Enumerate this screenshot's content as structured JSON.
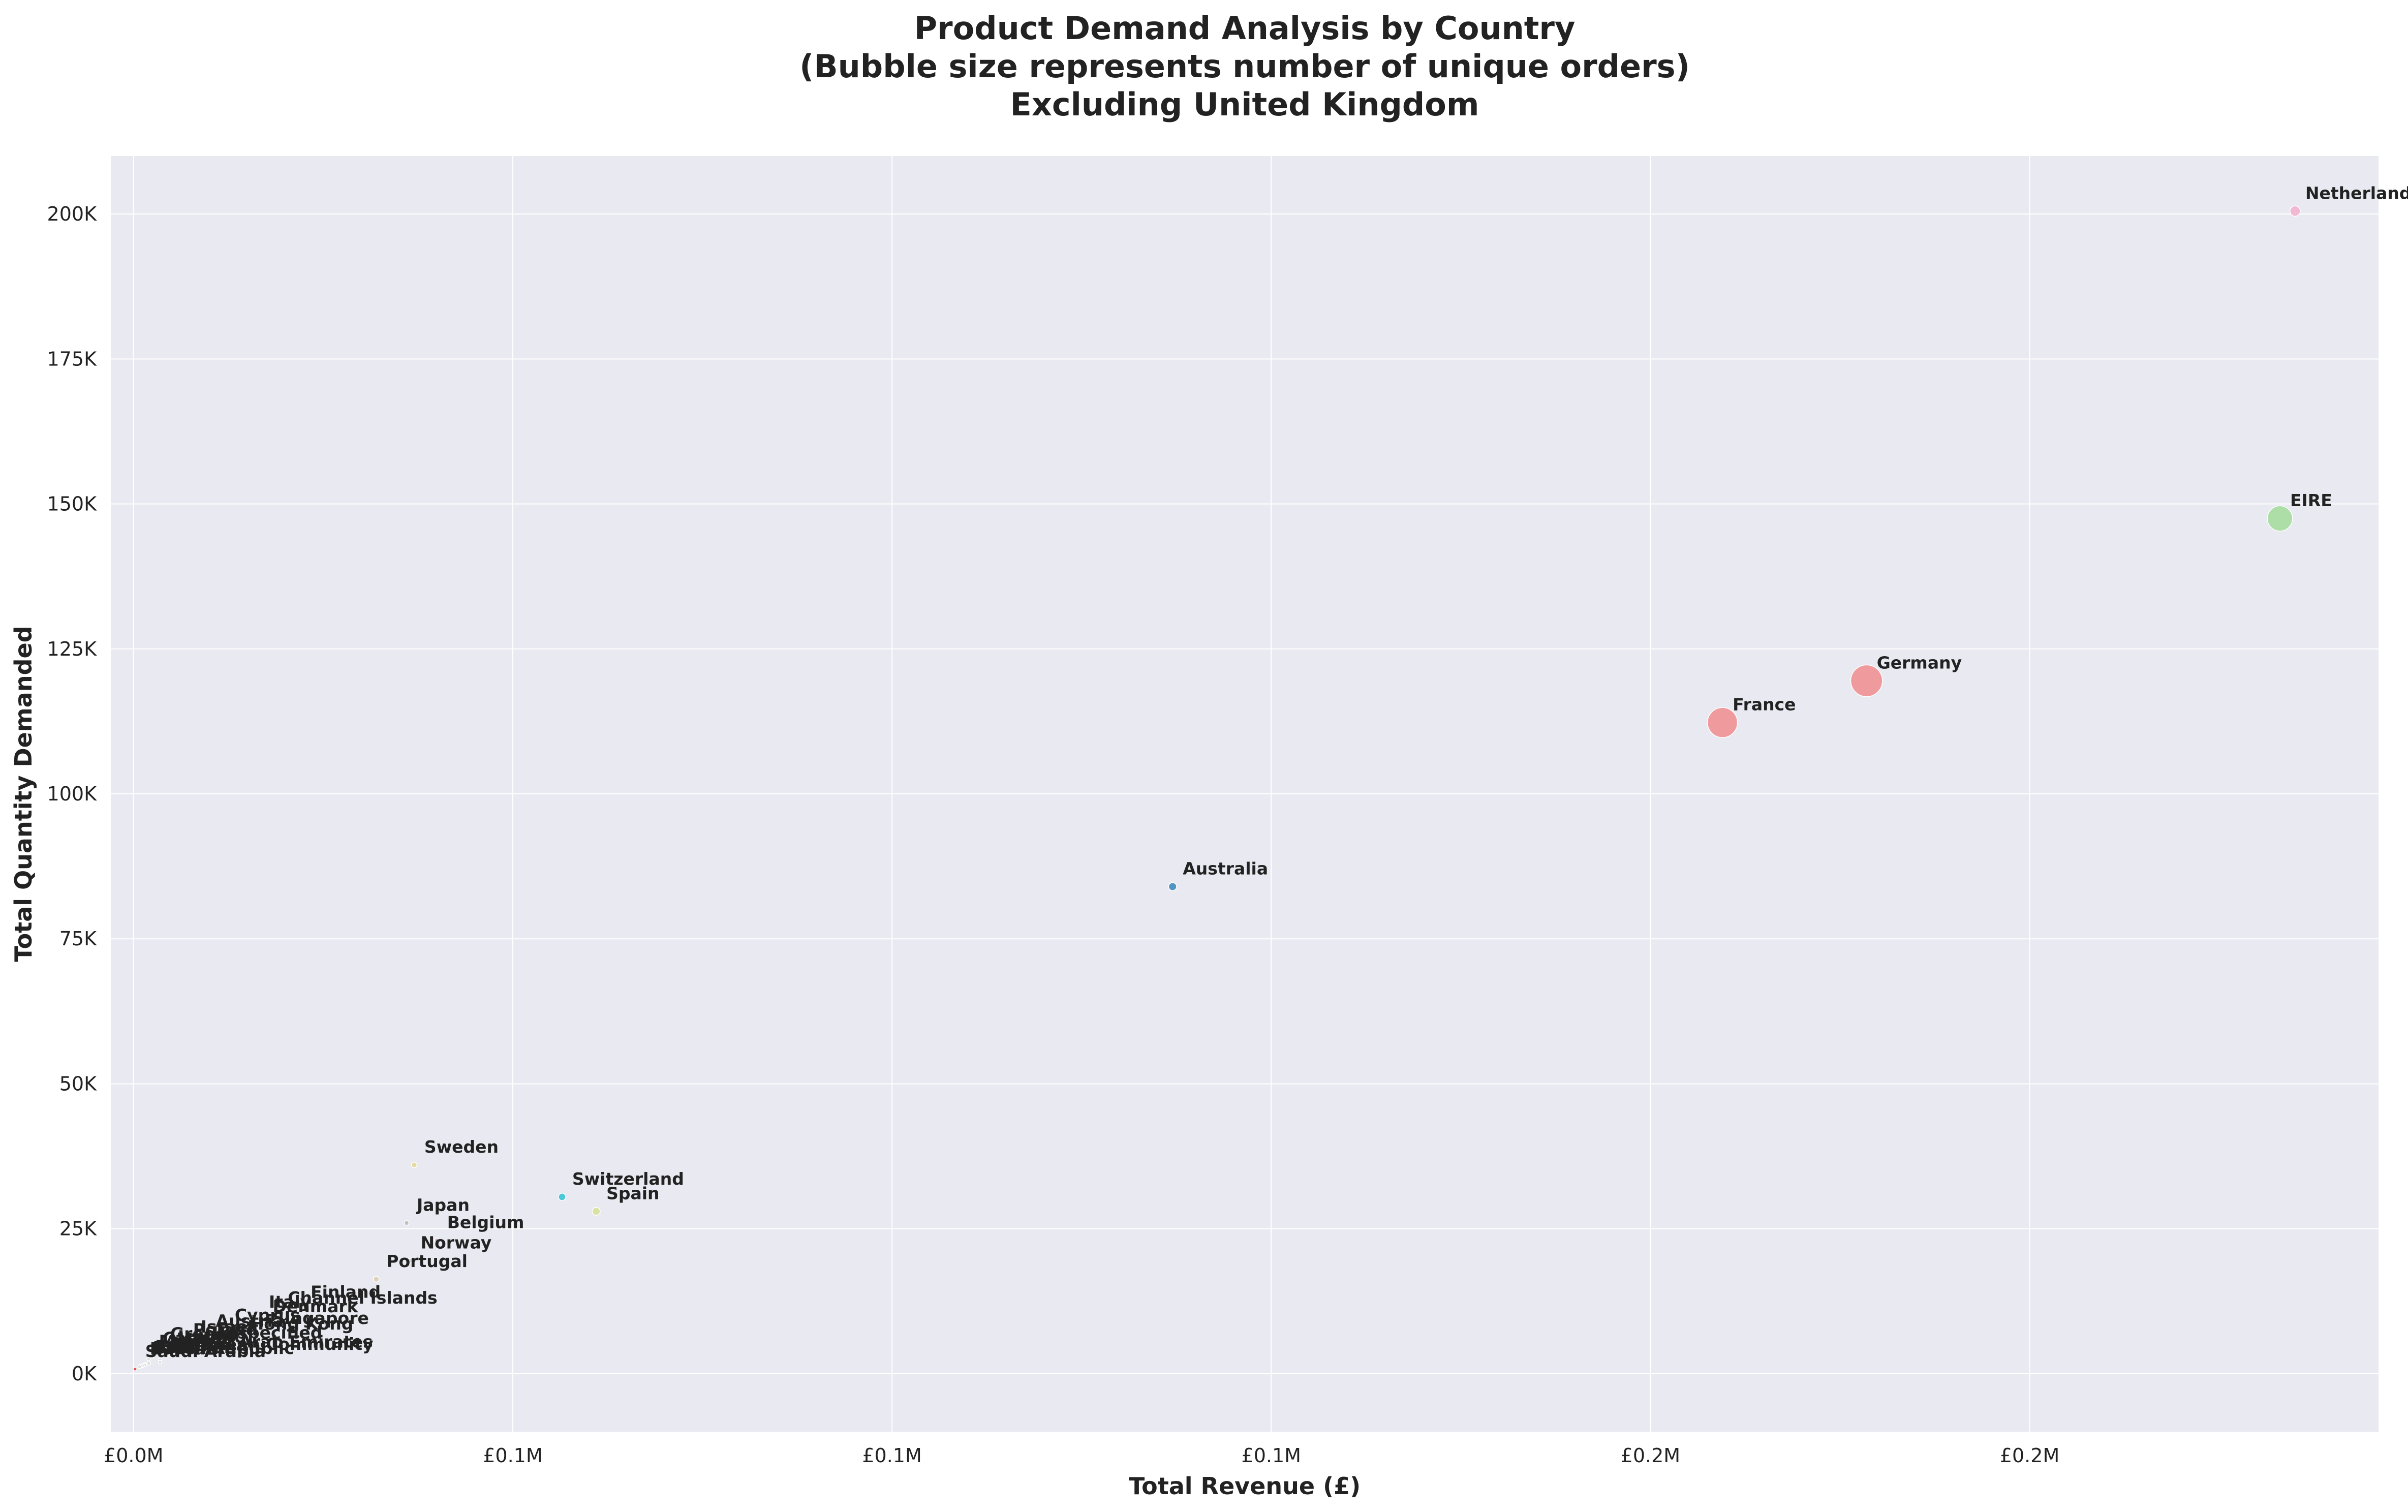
{
  "chart_data": {
    "type": "scatter",
    "title_lines": [
      "Product Demand Analysis by Country",
      "(Bubble size represents number of unique orders)",
      "Excluding United Kingdom"
    ],
    "xlabel": "Total Revenue (£)",
    "ylabel": "Total Quantity Demanded",
    "xlim": [
      -3000,
      296000
    ],
    "ylim": [
      -10000,
      210000
    ],
    "grid": true,
    "legend": "none",
    "x_ticks": [
      {
        "value": 0,
        "label": "£0.0M"
      },
      {
        "value": 50000,
        "label": "£0.1M"
      },
      {
        "value": 100000,
        "label": "£0.1M"
      },
      {
        "value": 150000,
        "label": "£0.1M"
      },
      {
        "value": 200000,
        "label": "£0.2M"
      },
      {
        "value": 250000,
        "label": "£0.2M"
      }
    ],
    "y_ticks": [
      {
        "value": 0,
        "label": "0K"
      },
      {
        "value": 25000,
        "label": "25K"
      },
      {
        "value": 50000,
        "label": "50K"
      },
      {
        "value": 75000,
        "label": "75K"
      },
      {
        "value": 100000,
        "label": "100K"
      },
      {
        "value": 125000,
        "label": "125K"
      },
      {
        "value": 150000,
        "label": "150K"
      },
      {
        "value": 175000,
        "label": "175K"
      },
      {
        "value": 200000,
        "label": "200K"
      }
    ],
    "points": [
      {
        "country": "Netherlands",
        "x": 285000,
        "y": 200500,
        "orders": 10,
        "color": "#f4a6c8"
      },
      {
        "country": "EIRE",
        "x": 283000,
        "y": 147500,
        "orders": 60,
        "color": "#98d98e"
      },
      {
        "country": "Germany",
        "x": 228500,
        "y": 119500,
        "orders": 95,
        "color": "#f08080"
      },
      {
        "country": "France",
        "x": 209500,
        "y": 112300,
        "orders": 85,
        "color": "#f08080"
      },
      {
        "country": "Australia",
        "x": 137000,
        "y": 84000,
        "orders": 6,
        "color": "#1f77b4"
      },
      {
        "country": "Sweden",
        "x": 37000,
        "y": 36000,
        "orders": 3,
        "color": "#e5d38a"
      },
      {
        "country": "Switzerland",
        "x": 56500,
        "y": 30500,
        "orders": 5,
        "color": "#17becf"
      },
      {
        "country": "Spain",
        "x": 61000,
        "y": 28000,
        "orders": 6,
        "color": "#d4e08a"
      },
      {
        "country": "Japan",
        "x": 36000,
        "y": 26000,
        "orders": 2,
        "color": "#b0b0b0"
      },
      {
        "country": "Belgium",
        "x": 40000,
        "y": 23000,
        "orders": 2,
        "color": "#c8a2c8"
      },
      {
        "country": "Norway",
        "x": 36500,
        "y": 19500,
        "orders": 2,
        "color": "#d0d0d0"
      },
      {
        "country": "Portugal",
        "x": 32000,
        "y": 16300,
        "orders": 3,
        "color": "#d8c8a8"
      },
      {
        "country": "Finland",
        "x": 22000,
        "y": 11000,
        "orders": 1,
        "color": "#d8d8d8"
      },
      {
        "country": "Channel Islands",
        "x": 19000,
        "y": 10000,
        "orders": 1,
        "color": "#d8d8d8"
      },
      {
        "country": "Denmark",
        "x": 17000,
        "y": 8500,
        "orders": 1,
        "color": "#d8d8d8"
      },
      {
        "country": "Italy",
        "x": 16500,
        "y": 9300,
        "orders": 1,
        "color": "#d8d8d8"
      },
      {
        "country": "Cyprus",
        "x": 12000,
        "y": 7000,
        "orders": 1,
        "color": "#d8d8d8"
      },
      {
        "country": "Singapore",
        "x": 17000,
        "y": 6500,
        "orders": 1,
        "color": "#d8d8d8"
      },
      {
        "country": "Austria",
        "x": 9500,
        "y": 6000,
        "orders": 1,
        "color": "#d8d8d8"
      },
      {
        "country": "Hong Kong",
        "x": 14000,
        "y": 5500,
        "orders": 1,
        "color": "#d8d8d8"
      },
      {
        "country": "Israel",
        "x": 7500,
        "y": 5000,
        "orders": 1,
        "color": "#d8d8d8"
      },
      {
        "country": "Poland",
        "x": 6500,
        "y": 4500,
        "orders": 1,
        "color": "#d8d8d8"
      },
      {
        "country": "Unspecified",
        "x": 9000,
        "y": 4000,
        "orders": 1,
        "color": "#d8d8d8"
      },
      {
        "country": "Greece",
        "x": 3500,
        "y": 3800,
        "orders": 1,
        "color": "#d8d8d8"
      },
      {
        "country": "Iceland",
        "x": 4500,
        "y": 3300,
        "orders": 1,
        "color": "#d8d8d8"
      },
      {
        "country": "Canada",
        "x": 2500,
        "y": 3000,
        "orders": 1,
        "color": "#d8d8d8"
      },
      {
        "country": "Malta",
        "x": 2000,
        "y": 2500,
        "orders": 1,
        "color": "#d8d8d8"
      },
      {
        "country": "United Arab Emirates",
        "x": 3500,
        "y": 2400,
        "orders": 1,
        "color": "#d8d8d8"
      },
      {
        "country": "European Community",
        "x": 3500,
        "y": 2000,
        "orders": 1,
        "color": "#d8d8d8"
      },
      {
        "country": "Lithuania",
        "x": 2000,
        "y": 1800,
        "orders": 1,
        "color": "#d8d8d8"
      },
      {
        "country": "RSA",
        "x": 1500,
        "y": 1600,
        "orders": 1,
        "color": "#d8d8d8"
      },
      {
        "country": "Lebanon",
        "x": 1500,
        "y": 1500,
        "orders": 1,
        "color": "#d8d8d8"
      },
      {
        "country": "Brazil",
        "x": 1200,
        "y": 1400,
        "orders": 1,
        "color": "#d8d8d8"
      },
      {
        "country": "Czech Republic",
        "x": 1000,
        "y": 1300,
        "orders": 1,
        "color": "#d8d8d8"
      },
      {
        "country": "Bahrain",
        "x": 800,
        "y": 1200,
        "orders": 1,
        "color": "#d8d8d8"
      },
      {
        "country": "Saudi Arabia",
        "x": 200,
        "y": 800,
        "orders": 1,
        "color": "#d62728"
      }
    ]
  }
}
